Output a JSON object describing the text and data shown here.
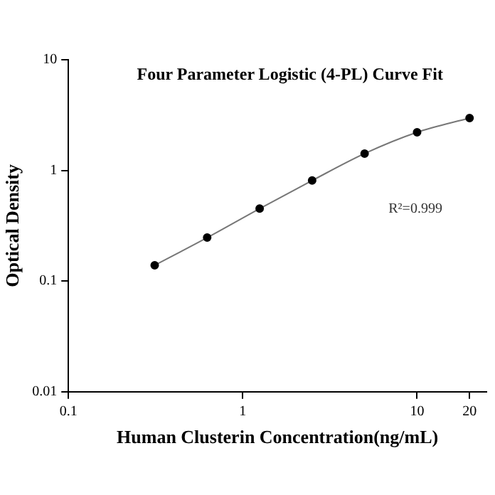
{
  "chart_data": {
    "type": "line",
    "title": "Four Parameter Logistic (4-PL) Curve Fit",
    "xlabel": "Human Clusterin Concentration(ng/mL)",
    "ylabel": "Optical Density",
    "annotations": [
      "R²=0.999"
    ],
    "x": [
      0.3125,
      0.625,
      1.25,
      2.5,
      5,
      10,
      20
    ],
    "series": [
      {
        "color": "#000000",
        "values": [
          0.139,
          0.247,
          0.452,
          0.81,
          1.42,
          2.21,
          2.97
        ]
      }
    ],
    "log": "xy",
    "xlim": [
      0.1,
      25
    ],
    "ylim": [
      0.01,
      10
    ],
    "xticks": [
      0.1,
      1,
      10,
      20
    ],
    "yticks": [
      0.01,
      0.1,
      1,
      10
    ],
    "grid": false,
    "legend": false,
    "marker": "circle",
    "line_style": "solid"
  }
}
